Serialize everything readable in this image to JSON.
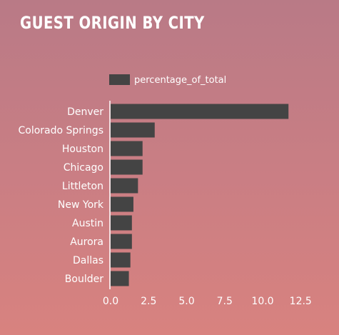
{
  "chart_data": {
    "type": "bar",
    "orientation": "horizontal",
    "title": "GUEST ORIGIN BY CITY",
    "xlabel": "",
    "ylabel": "",
    "xlim": [
      0,
      12.5
    ],
    "xticks": [
      "0.0",
      "2.5",
      "5.0",
      "7.5",
      "10.0",
      "12.5"
    ],
    "legend_position": "top",
    "bar_color": "#444444",
    "categories": [
      "Denver",
      "Colorado Springs",
      "Houston",
      "Chicago",
      "Littleton",
      "New York",
      "Austin",
      "Aurora",
      "Dallas",
      "Boulder"
    ],
    "series": [
      {
        "name": "percentage_of_total",
        "values": [
          11.7,
          2.9,
          2.1,
          2.1,
          1.8,
          1.5,
          1.4,
          1.4,
          1.3,
          1.2
        ]
      }
    ]
  }
}
